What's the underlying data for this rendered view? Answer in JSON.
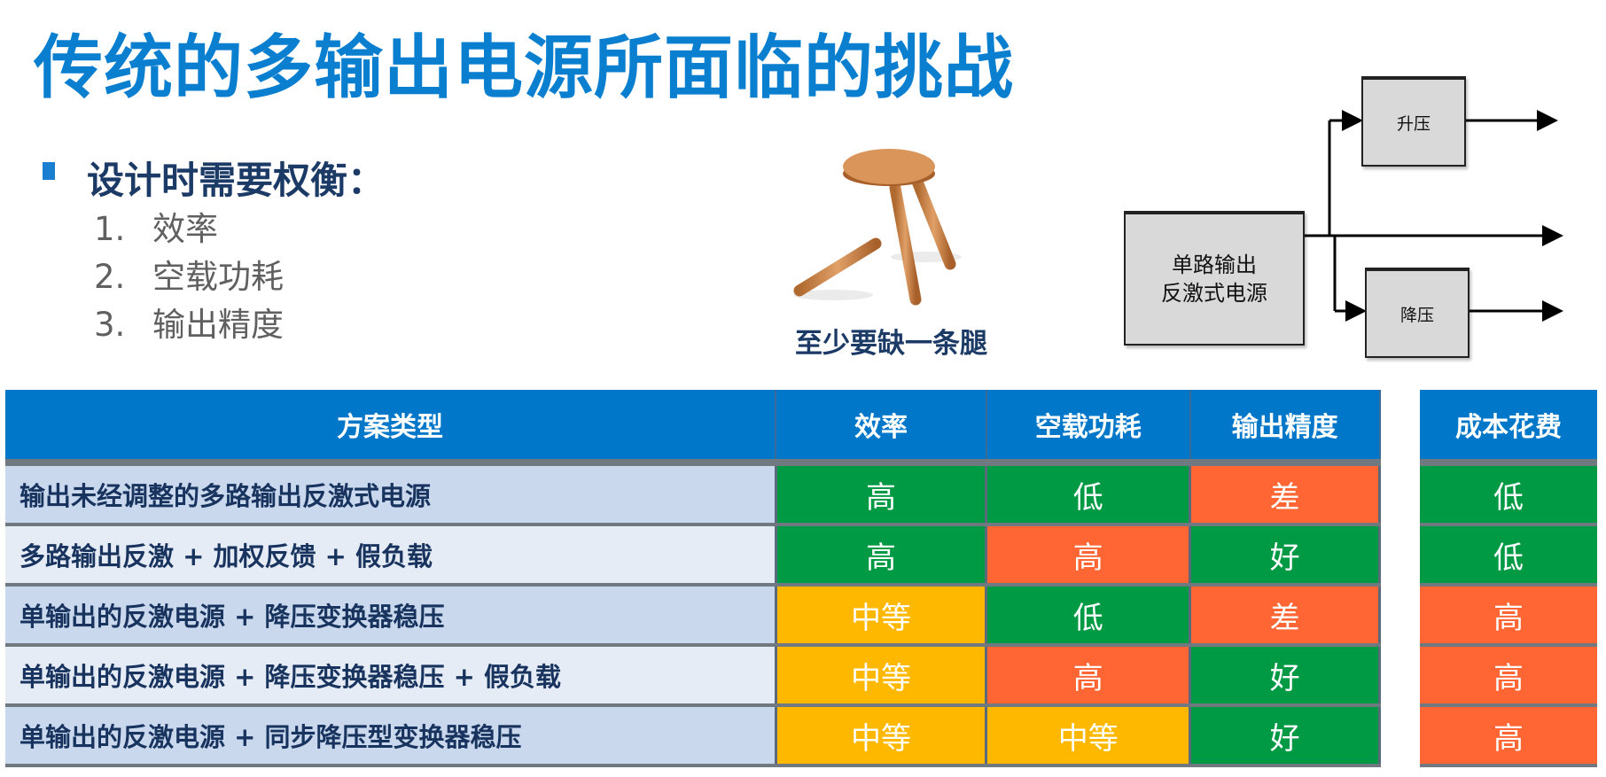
{
  "title": "传统的多输出电源所面临的挑战",
  "subheading": "设计时需要权衡：",
  "tradeoffs": [
    {
      "num": "1.",
      "label": "效率"
    },
    {
      "num": "2.",
      "label": "空载功耗"
    },
    {
      "num": "3.",
      "label": "输出精度"
    }
  ],
  "stool_caption": "至少要缺一条腿",
  "diagram": {
    "source_line1": "单路输出",
    "source_line2": "反激式电源",
    "boost": "升压",
    "buck": "降压"
  },
  "colors": {
    "good": "#009a44",
    "bad": "#ff6633",
    "medium": "#ffb800",
    "header": "#0077c8"
  },
  "table": {
    "headers": [
      "方案类型",
      "效率",
      "空载功耗",
      "输出精度"
    ],
    "cost_header": "成本花费",
    "rows": [
      {
        "name": "输出未经调整的多路输出反激式电源",
        "cells": [
          {
            "v": "高",
            "c": "green"
          },
          {
            "v": "低",
            "c": "green"
          },
          {
            "v": "差",
            "c": "orange"
          }
        ],
        "cost": {
          "v": "低",
          "c": "green"
        }
      },
      {
        "name": "多路输出反激 + 加权反馈 + 假负载",
        "cells": [
          {
            "v": "高",
            "c": "green"
          },
          {
            "v": "高",
            "c": "orange"
          },
          {
            "v": "好",
            "c": "green"
          }
        ],
        "cost": {
          "v": "低",
          "c": "green"
        }
      },
      {
        "name": "单输出的反激电源 + 降压变换器稳压",
        "cells": [
          {
            "v": "中等",
            "c": "yellow"
          },
          {
            "v": "低",
            "c": "green"
          },
          {
            "v": "差",
            "c": "orange"
          }
        ],
        "cost": {
          "v": "高",
          "c": "orange"
        }
      },
      {
        "name": "单输出的反激电源 + 降压变换器稳压 + 假负载",
        "cells": [
          {
            "v": "中等",
            "c": "yellow"
          },
          {
            "v": "高",
            "c": "orange"
          },
          {
            "v": "好",
            "c": "green"
          }
        ],
        "cost": {
          "v": "高",
          "c": "orange"
        }
      },
      {
        "name": "单输出的反激电源 + 同步降压型变换器稳压",
        "cells": [
          {
            "v": "中等",
            "c": "yellow"
          },
          {
            "v": "中等",
            "c": "yellow"
          },
          {
            "v": "好",
            "c": "green"
          }
        ],
        "cost": {
          "v": "高",
          "c": "orange"
        }
      }
    ]
  }
}
